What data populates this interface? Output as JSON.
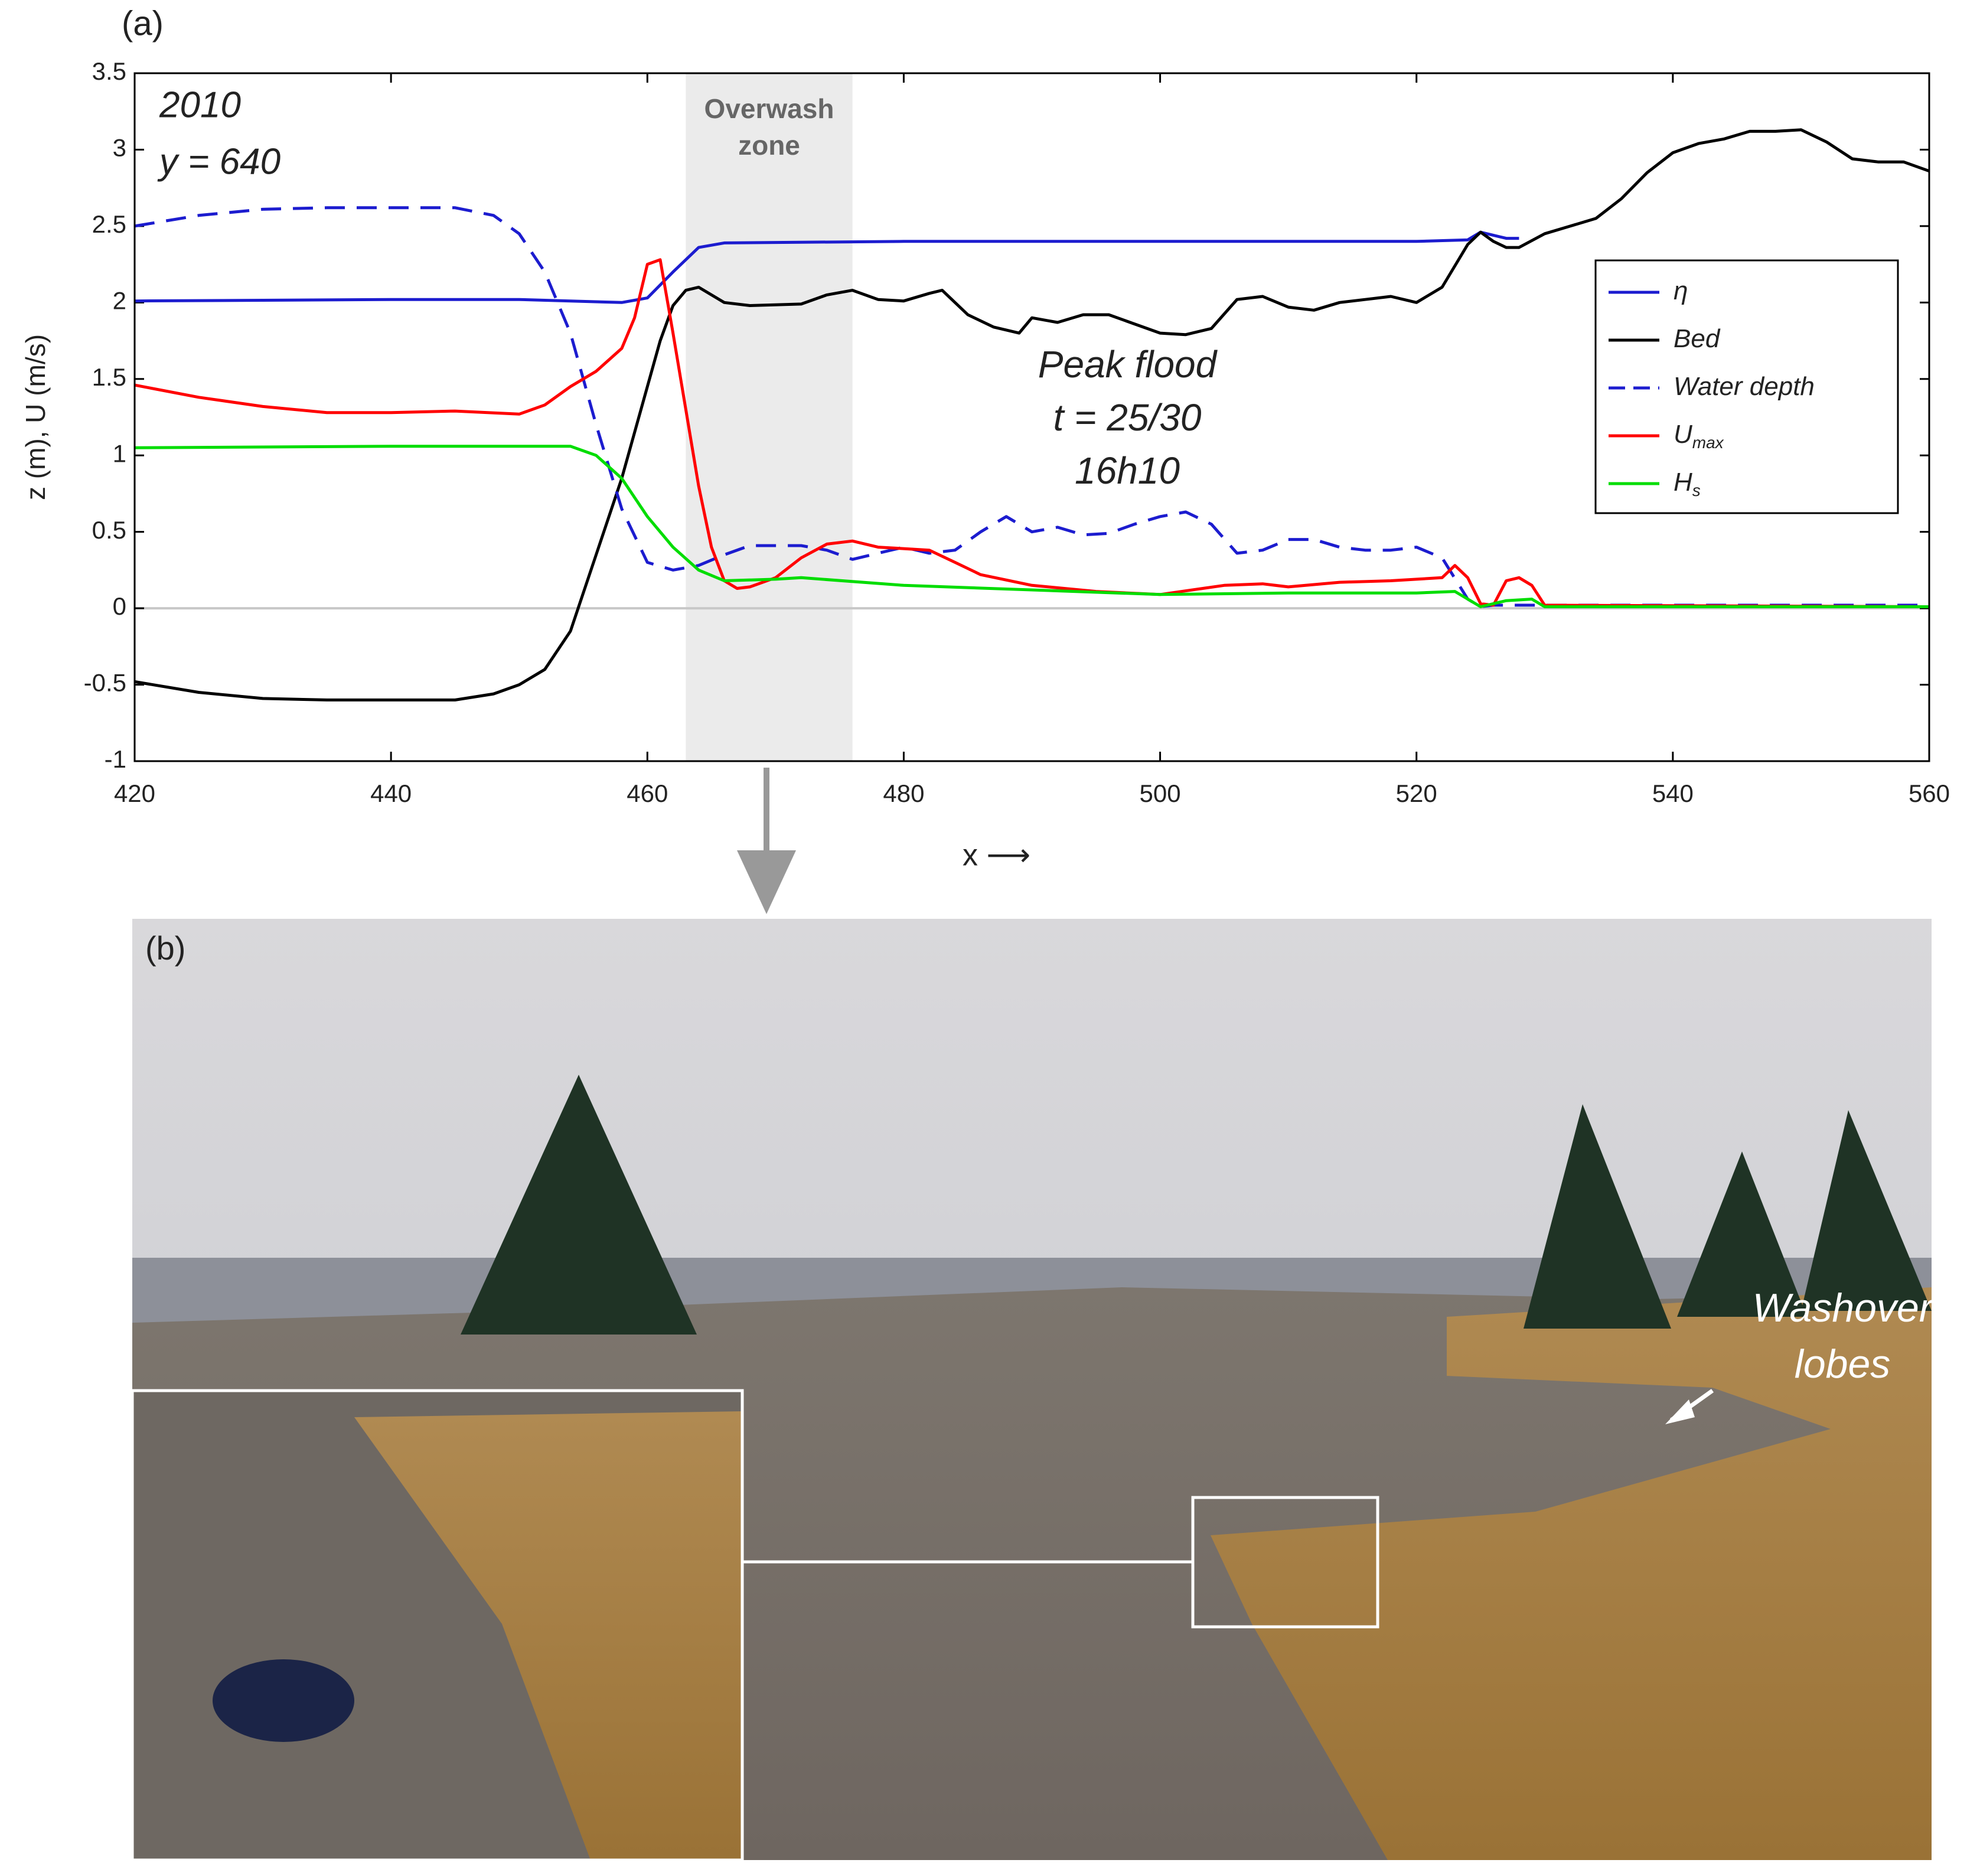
{
  "chart_data": {
    "type": "line",
    "panel_label": "(a)",
    "notes": [
      "2010",
      "y = 640"
    ],
    "annotation": [
      "Peak flood",
      "t = 25/30",
      "16h10"
    ],
    "shade": {
      "x": [
        463,
        476
      ],
      "label": [
        "Overwash",
        "zone"
      ],
      "color": "#ebebeb"
    },
    "xlabel": "x ⟶",
    "ylabel": "z (m), U (m/s)",
    "reference_line": 0,
    "xlim": [
      420,
      560
    ],
    "xticks": [
      420,
      440,
      460,
      480,
      500,
      520,
      540,
      560
    ],
    "ylim": [
      -1,
      3.5
    ],
    "yticks": [
      -1,
      -0.5,
      0,
      0.5,
      1,
      1.5,
      2,
      2.5,
      3,
      3.5
    ],
    "legend": "upper right",
    "series": [
      {
        "name": "η",
        "color": "#1c1ccf",
        "dash": false,
        "x": [
          420,
          440,
          450,
          458,
          460,
          462,
          464,
          466,
          480,
          500,
          520,
          524,
          525,
          527,
          528
        ],
        "values": [
          2.01,
          2.02,
          2.02,
          2.0,
          2.03,
          2.2,
          2.36,
          2.39,
          2.4,
          2.4,
          2.4,
          2.41,
          2.46,
          2.42,
          2.42
        ]
      },
      {
        "name": "Bed",
        "color": "#000000",
        "dash": false,
        "x": [
          420,
          425,
          430,
          435,
          440,
          445,
          448,
          450,
          452,
          454,
          456,
          458,
          460,
          461,
          462,
          463,
          464,
          466,
          468,
          472,
          474,
          476,
          478,
          480,
          482,
          483,
          485,
          487,
          489,
          490,
          492,
          494,
          496,
          498,
          500,
          502,
          504,
          506,
          508,
          510,
          512,
          514,
          516,
          518,
          520,
          522,
          524,
          525,
          526,
          527,
          528,
          530,
          532,
          534,
          536,
          538,
          540,
          542,
          544,
          546,
          548,
          550,
          552,
          554,
          556,
          558,
          560
        ],
        "values": [
          -0.48,
          -0.55,
          -0.59,
          -0.6,
          -0.6,
          -0.6,
          -0.56,
          -0.5,
          -0.4,
          -0.15,
          0.35,
          0.85,
          1.45,
          1.75,
          1.98,
          2.08,
          2.1,
          2.0,
          1.98,
          1.99,
          2.05,
          2.08,
          2.02,
          2.01,
          2.06,
          2.08,
          1.92,
          1.84,
          1.8,
          1.9,
          1.87,
          1.92,
          1.92,
          1.86,
          1.8,
          1.79,
          1.83,
          2.02,
          2.04,
          1.97,
          1.95,
          2.0,
          2.02,
          2.04,
          2.0,
          2.1,
          2.38,
          2.46,
          2.4,
          2.36,
          2.36,
          2.45,
          2.5,
          2.55,
          2.68,
          2.85,
          2.98,
          3.04,
          3.07,
          3.12,
          3.12,
          3.13,
          3.05,
          2.94,
          2.92,
          2.92,
          2.86
        ]
      },
      {
        "name": "Water depth",
        "color": "#1c1ccf",
        "dash": true,
        "x": [
          420,
          425,
          430,
          435,
          440,
          445,
          448,
          450,
          452,
          454,
          456,
          458,
          460,
          462,
          464,
          466,
          468,
          472,
          474,
          476,
          478,
          480,
          482,
          484,
          486,
          488,
          490,
          492,
          494,
          496,
          498,
          500,
          502,
          504,
          506,
          508,
          510,
          512,
          514,
          516,
          518,
          520,
          522,
          524,
          525,
          526,
          528,
          530,
          560
        ],
        "values": [
          2.5,
          2.57,
          2.61,
          2.62,
          2.62,
          2.62,
          2.57,
          2.45,
          2.2,
          1.8,
          1.2,
          0.65,
          0.3,
          0.25,
          0.28,
          0.35,
          0.41,
          0.41,
          0.38,
          0.32,
          0.36,
          0.4,
          0.36,
          0.38,
          0.5,
          0.6,
          0.5,
          0.53,
          0.48,
          0.49,
          0.55,
          0.6,
          0.63,
          0.55,
          0.36,
          0.38,
          0.45,
          0.45,
          0.4,
          0.38,
          0.38,
          0.4,
          0.33,
          0.06,
          0.01,
          0.02,
          0.02,
          0.02,
          0.02
        ]
      },
      {
        "name": "U",
        "subscript": "max",
        "color": "#ff0000",
        "dash": false,
        "x": [
          420,
          425,
          430,
          435,
          440,
          445,
          450,
          452,
          454,
          456,
          458,
          459,
          460,
          461,
          462,
          463,
          464,
          465,
          466,
          467,
          468,
          470,
          472,
          474,
          476,
          478,
          480,
          482,
          484,
          486,
          490,
          495,
          500,
          505,
          508,
          510,
          514,
          518,
          522,
          523,
          524,
          525,
          526,
          527,
          528,
          529,
          530,
          560
        ],
        "values": [
          1.46,
          1.38,
          1.32,
          1.28,
          1.28,
          1.29,
          1.27,
          1.33,
          1.45,
          1.55,
          1.7,
          1.9,
          2.25,
          2.28,
          1.8,
          1.3,
          0.8,
          0.4,
          0.18,
          0.13,
          0.14,
          0.2,
          0.33,
          0.42,
          0.44,
          0.4,
          0.39,
          0.38,
          0.3,
          0.22,
          0.15,
          0.11,
          0.09,
          0.15,
          0.16,
          0.14,
          0.17,
          0.18,
          0.2,
          0.28,
          0.2,
          0.03,
          0.02,
          0.18,
          0.2,
          0.15,
          0.02,
          0.01
        ]
      },
      {
        "name": "H",
        "subscript": "s",
        "color": "#00dd00",
        "dash": false,
        "x": [
          420,
          440,
          450,
          454,
          456,
          458,
          460,
          462,
          464,
          466,
          470,
          472,
          480,
          500,
          510,
          520,
          523,
          525,
          527,
          529,
          530,
          560
        ],
        "values": [
          1.05,
          1.06,
          1.06,
          1.06,
          1.0,
          0.85,
          0.6,
          0.4,
          0.25,
          0.18,
          0.19,
          0.2,
          0.15,
          0.09,
          0.1,
          0.1,
          0.11,
          0.01,
          0.05,
          0.06,
          0.01,
          0.01
        ]
      }
    ]
  },
  "photo": {
    "panel_label": "(b)",
    "annotation": [
      "Washover",
      "lobes"
    ]
  }
}
